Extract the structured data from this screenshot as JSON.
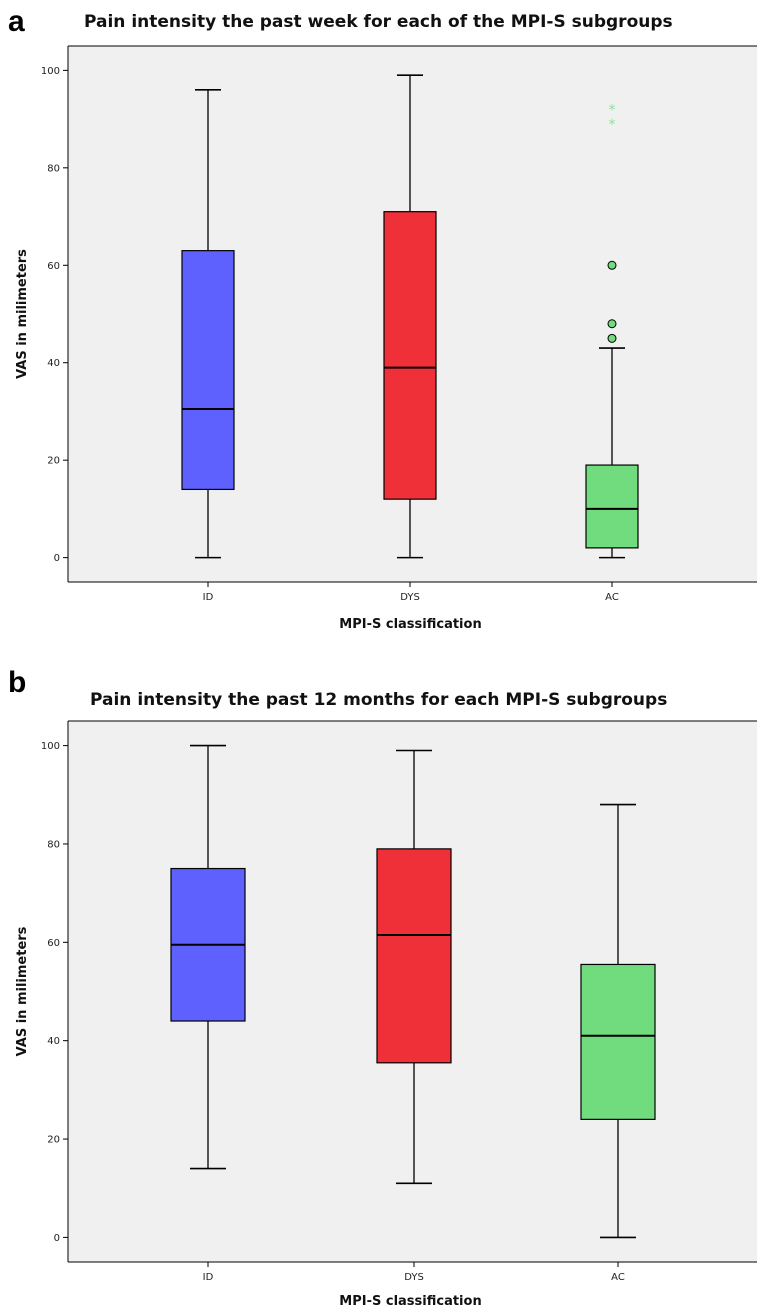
{
  "chart_data": [
    {
      "panel": "a",
      "type": "box",
      "title": "Pain intensity the past week for each of the MPI-S subgroups",
      "xlabel": "MPI-S classification",
      "ylabel": "VAS in milimeters",
      "ylim": [
        -5,
        105
      ],
      "yticks": [
        0,
        20,
        40,
        60,
        80,
        100
      ],
      "grid": false,
      "categories": [
        "ID",
        "DYS",
        "AC"
      ],
      "boxes": [
        {
          "category": "ID",
          "min": 0,
          "q1": 14,
          "median": 30.5,
          "q3": 63,
          "max": 96,
          "outliers": [],
          "extremes": [],
          "color": "#5f61ff"
        },
        {
          "category": "DYS",
          "min": 0,
          "q1": 12,
          "median": 39,
          "q3": 71,
          "max": 99,
          "outliers": [],
          "extremes": [],
          "color": "#ef3038"
        },
        {
          "category": "AC",
          "min": 0,
          "q1": 2,
          "median": 10,
          "q3": 19,
          "max": 43,
          "outliers": [
            45,
            48,
            60
          ],
          "extremes": [
            89,
            92
          ],
          "color": "#70dc7e"
        }
      ]
    },
    {
      "panel": "b",
      "type": "box",
      "title": "Pain intensity the past 12 months for each MPI-S subgroups",
      "xlabel": "MPI-S classification",
      "ylabel": "VAS in milimeters",
      "ylim": [
        -5,
        105
      ],
      "yticks": [
        0,
        20,
        40,
        60,
        80,
        100
      ],
      "grid": false,
      "categories": [
        "ID",
        "DYS",
        "AC"
      ],
      "boxes": [
        {
          "category": "ID",
          "min": 14,
          "q1": 44,
          "median": 59.5,
          "q3": 75,
          "max": 100,
          "outliers": [],
          "extremes": [],
          "color": "#5f61ff"
        },
        {
          "category": "DYS",
          "min": 11,
          "q1": 35.5,
          "median": 61.5,
          "q3": 79,
          "max": 99,
          "outliers": [],
          "extremes": [],
          "color": "#ef3038"
        },
        {
          "category": "AC",
          "min": 0,
          "q1": 24,
          "median": 41,
          "q3": 55.5,
          "max": 88,
          "outliers": [],
          "extremes": [],
          "color": "#70dc7e"
        }
      ]
    }
  ],
  "panels": {
    "a": {
      "letter": "a",
      "title": "Pain intensity the past week for each of the MPI-S subgroups"
    },
    "b": {
      "letter": "b",
      "title": "Pain intensity the past 12 months for each MPI-S subgroups"
    }
  },
  "colors": {
    "plot_background": "#f0f0f0",
    "outlier_fill": "#70dc7e",
    "extreme_marker": "#8ee29a"
  }
}
